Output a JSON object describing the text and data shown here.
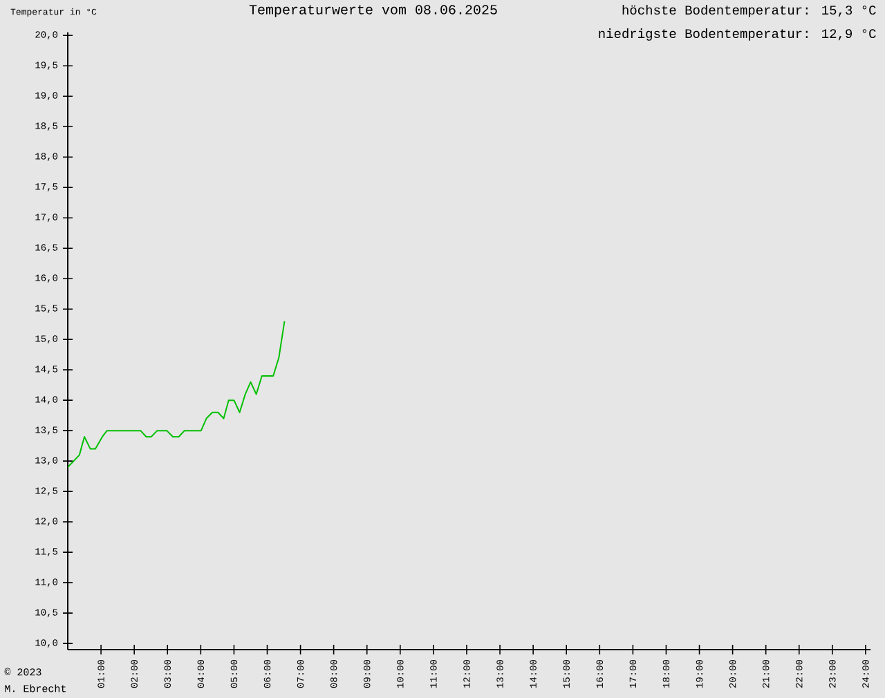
{
  "chart_data": {
    "type": "line",
    "title": "Temperaturwerte vom 08.06.2025",
    "ylabel": "Temperatur in °C",
    "annotations": [
      "höchste Bodentemperatur: 15,3 °C",
      "niedrigste Bodentemperatur: 12,9 °C",
      "© 2023",
      "M. Ebrecht"
    ],
    "x": [
      0,
      0.35,
      0.5,
      0.68,
      0.83,
      1.04,
      1.18,
      2.19,
      2.36,
      2.51,
      2.69,
      2.98,
      3.16,
      3.34,
      3.51,
      4.01,
      4.17,
      4.35,
      4.52,
      4.69,
      4.84,
      5.0,
      5.17,
      5.34,
      5.5,
      5.67,
      5.84,
      6.18,
      6.35,
      6.52
    ],
    "series": [
      {
        "color": "#00c000",
        "values": [
          12.9,
          13.1,
          13.4,
          13.2,
          13.2,
          13.4,
          13.5,
          13.5,
          13.4,
          13.4,
          13.5,
          13.5,
          13.4,
          13.4,
          13.5,
          13.5,
          13.7,
          13.8,
          13.8,
          13.7,
          14.0,
          14.0,
          13.8,
          14.1,
          14.3,
          14.1,
          14.4,
          14.4,
          14.7,
          15.3
        ]
      }
    ],
    "xlim": [
      0,
      24.15
    ],
    "ylim": [
      9.9,
      20.05
    ],
    "xticks": [
      {
        "value": 1,
        "label": "01:00"
      },
      {
        "value": 2,
        "label": "02:00"
      },
      {
        "value": 3,
        "label": "03:00"
      },
      {
        "value": 4,
        "label": "04:00"
      },
      {
        "value": 5,
        "label": "05:00"
      },
      {
        "value": 6,
        "label": "06:00"
      },
      {
        "value": 7,
        "label": "07:00"
      },
      {
        "value": 8,
        "label": "08:00"
      },
      {
        "value": 9,
        "label": "09:00"
      },
      {
        "value": 10,
        "label": "10:00"
      },
      {
        "value": 11,
        "label": "11:00"
      },
      {
        "value": 12,
        "label": "12:00"
      },
      {
        "value": 13,
        "label": "13:00"
      },
      {
        "value": 14,
        "label": "14:00"
      },
      {
        "value": 15,
        "label": "15:00"
      },
      {
        "value": 16,
        "label": "16:00"
      },
      {
        "value": 17,
        "label": "17:00"
      },
      {
        "value": 18,
        "label": "18:00"
      },
      {
        "value": 19,
        "label": "19:00"
      },
      {
        "value": 20,
        "label": "20:00"
      },
      {
        "value": 21,
        "label": "21:00"
      },
      {
        "value": 22,
        "label": "22:00"
      },
      {
        "value": 23,
        "label": "23:00"
      },
      {
        "value": 24,
        "label": "24:00"
      }
    ],
    "yticks": [
      {
        "value": 10,
        "label": "10,0"
      },
      {
        "value": 10.5,
        "label": "10,5"
      },
      {
        "value": 11,
        "label": "11,0"
      },
      {
        "value": 11.5,
        "label": "11,5"
      },
      {
        "value": 12,
        "label": "12,0"
      },
      {
        "value": 12.5,
        "label": "12,5"
      },
      {
        "value": 13,
        "label": "13,0"
      },
      {
        "value": 13.5,
        "label": "13,5"
      },
      {
        "value": 14,
        "label": "14,0"
      },
      {
        "value": 14.5,
        "label": "14,5"
      },
      {
        "value": 15,
        "label": "15,0"
      },
      {
        "value": 15.5,
        "label": "15,5"
      },
      {
        "value": 16,
        "label": "16,0"
      },
      {
        "value": 16.5,
        "label": "16,5"
      },
      {
        "value": 17,
        "label": "17,0"
      },
      {
        "value": 17.5,
        "label": "17,5"
      },
      {
        "value": 18,
        "label": "18,0"
      },
      {
        "value": 18.5,
        "label": "18,5"
      },
      {
        "value": 19,
        "label": "19,0"
      },
      {
        "value": 19.5,
        "label": "19,5"
      },
      {
        "value": 20,
        "label": "20,0"
      }
    ],
    "grid": false,
    "marker": "none",
    "line_style": "solid"
  }
}
